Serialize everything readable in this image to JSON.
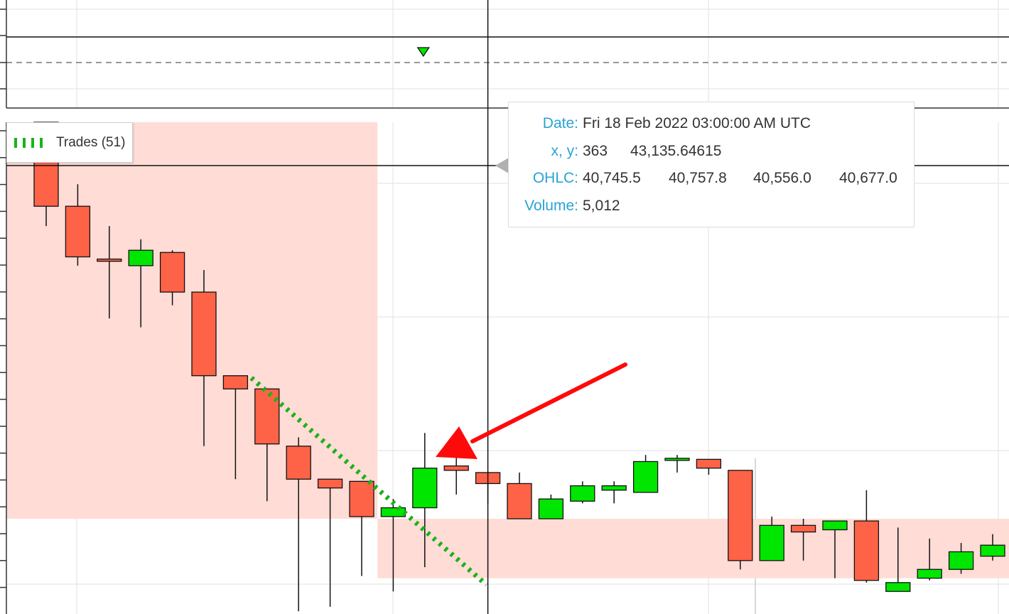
{
  "chart_data": {
    "type": "candlestick",
    "series": [
      {
        "name": "Trades (51)",
        "legend_label": "Trades (51)",
        "color": "#1bb21b",
        "style": "dashed",
        "points": [
          [
            7,
            42230
          ],
          [
            14,
            41290
          ]
        ]
      }
    ],
    "candles": [
      {
        "i": 0,
        "o": 43700,
        "h": 43800,
        "l": 42920,
        "c": 43010
      },
      {
        "i": 1,
        "o": 43010,
        "h": 43110,
        "l": 42740,
        "c": 42780
      },
      {
        "i": 2,
        "o": 42770,
        "h": 42920,
        "l": 42500,
        "c": 42760
      },
      {
        "i": 3,
        "o": 42740,
        "h": 42860,
        "l": 42460,
        "c": 42810
      },
      {
        "i": 4,
        "o": 42800,
        "h": 42810,
        "l": 42560,
        "c": 42620
      },
      {
        "i": 5,
        "o": 42620,
        "h": 42720,
        "l": 41920,
        "c": 42240
      },
      {
        "i": 6,
        "o": 42240,
        "h": 42240,
        "l": 41770,
        "c": 42180
      },
      {
        "i": 7,
        "o": 42180,
        "h": 42180,
        "l": 41670,
        "c": 41930
      },
      {
        "i": 8,
        "o": 41920,
        "h": 41960,
        "l": 41170,
        "c": 41770
      },
      {
        "i": 9,
        "o": 41770,
        "h": 41770,
        "l": 41190,
        "c": 41730
      },
      {
        "i": 10,
        "o": 41760,
        "h": 41760,
        "l": 41330,
        "c": 41600
      },
      {
        "i": 11,
        "o": 41600,
        "h": 41680,
        "l": 41260,
        "c": 41640
      },
      {
        "i": 12,
        "o": 41640,
        "h": 41980,
        "l": 41370,
        "c": 41820
      },
      {
        "i": 13,
        "o": 41830,
        "h": 41910,
        "l": 41700,
        "c": 41810
      },
      {
        "i": 14,
        "o": 41800,
        "h": 41800,
        "l": 41660,
        "c": 41750
      },
      {
        "i": 15,
        "o": 41750,
        "h": 41800,
        "l": 41590,
        "c": 41590
      },
      {
        "i": 16,
        "o": 41590,
        "h": 41700,
        "l": 41590,
        "c": 41680
      },
      {
        "i": 17,
        "o": 41670,
        "h": 41760,
        "l": 41660,
        "c": 41740
      },
      {
        "i": 18,
        "o": 41720,
        "h": 41760,
        "l": 41660,
        "c": 41740
      },
      {
        "i": 19,
        "o": 41710,
        "h": 41880,
        "l": 41710,
        "c": 41850
      },
      {
        "i": 20,
        "o": 41860,
        "h": 41880,
        "l": 41800,
        "c": 41860
      },
      {
        "i": 21,
        "o": 41860,
        "h": 41860,
        "l": 41790,
        "c": 41820
      },
      {
        "i": 22,
        "o": 41810,
        "h": 41810,
        "l": 41360,
        "c": 41400
      },
      {
        "i": 23,
        "o": 41400,
        "h": 41600,
        "l": 41400,
        "c": 41560
      },
      {
        "i": 24,
        "o": 41560,
        "h": 41590,
        "l": 41400,
        "c": 41530
      },
      {
        "i": 25,
        "o": 41540,
        "h": 41580,
        "l": 41320,
        "c": 41580
      },
      {
        "i": 26,
        "o": 41580,
        "h": 41720,
        "l": 41300,
        "c": 41310
      },
      {
        "i": 27,
        "o": 41260,
        "h": 41550,
        "l": 41260,
        "c": 41300
      },
      {
        "i": 28,
        "o": 41320,
        "h": 41500,
        "l": 41310,
        "c": 41360
      },
      {
        "i": 29,
        "o": 41360,
        "h": 41480,
        "l": 41340,
        "c": 41440
      },
      {
        "i": 30,
        "o": 41420,
        "h": 41520,
        "l": 41400,
        "c": 41470
      }
    ],
    "colors": {
      "up": "#00e600",
      "down": "#ff6347",
      "zone": "#ffdcd6"
    },
    "zones": [
      {
        "from_index": 0,
        "to_index": 10,
        "y_high": 43850,
        "y_low": 41590
      },
      {
        "from_index": 11,
        "to_index": 30,
        "y_high": 41590,
        "y_low": 41320
      }
    ],
    "signal_marker": {
      "type": "triangle-down",
      "index": 12,
      "color": "#00e600"
    },
    "crosshair": {
      "index": 14,
      "y": 43135.64615
    },
    "grid": true,
    "legend_position": "top-left"
  },
  "tooltip": {
    "date_label": "Date:",
    "date_value": "Fri 18 Feb 2022 03:00:00 AM UTC",
    "xy_label": "x, y:",
    "x_value": "363",
    "y_value": "43,135.64615",
    "ohlc_label": "OHLC:",
    "open": "40,745.5",
    "high": "40,757.8",
    "low": "40,556.0",
    "close": "40,677.0",
    "volume_label": "Volume:",
    "volume_value": "5,012"
  },
  "annotation": {
    "type": "arrow",
    "color": "#ff0a0a"
  }
}
